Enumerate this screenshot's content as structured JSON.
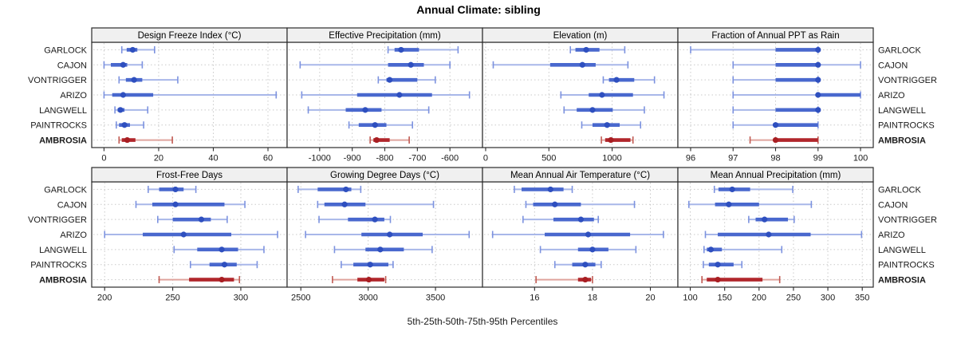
{
  "title": "Annual Climate: sibling",
  "axis_label": "5th-25th-50th-75th-95th Percentiles",
  "percentile_labels": [
    "5th",
    "25th",
    "50th",
    "75th",
    "95th"
  ],
  "sites": [
    "GARLOCK",
    "CAJON",
    "VONTRIGGER",
    "ARIZO",
    "LANGWELL",
    "PAINTROCKS",
    "AMBROSIA"
  ],
  "highlight_site": "AMBROSIA",
  "colors": {
    "normal": {
      "dot": "#2E4FBF",
      "box": "#4968CE",
      "whisker": "#A8B7E9",
      "cap": "#7C92DF"
    },
    "highlight": {
      "dot": "#A81E22",
      "box": "#B1262B",
      "whisker": "#DFA49D",
      "cap": "#C05A52"
    },
    "grid": "#C9C9C9",
    "frame": "#2B2B2B",
    "strip_bg": "#F0F0F0",
    "strip_text": "#000000",
    "tick_text": "#1A1A1A",
    "site_text": "#1A1A1A"
  },
  "chart_data": {
    "type": "dotplot-percentile-ranges",
    "layout": {
      "rows": 2,
      "cols": 4
    },
    "legend_position": "none",
    "grid": "dotted",
    "panels": [
      {
        "title": "Design Freeze Index (°C)",
        "grid_pos": [
          0,
          0
        ],
        "range": [
          -4.5,
          67
        ],
        "ticks": [
          0,
          20,
          40,
          60
        ],
        "values": [
          [
            6.5,
            8.3,
            10.5,
            12.2,
            18.5
          ],
          [
            0,
            2.5,
            7,
            8.5,
            14
          ],
          [
            5.5,
            8,
            11,
            14,
            27
          ],
          [
            0,
            3,
            7,
            18,
            63
          ],
          [
            4,
            5,
            6,
            7.5,
            16
          ],
          [
            4.5,
            5.5,
            7.5,
            9.5,
            14.5
          ],
          [
            5.5,
            6.5,
            8.5,
            11.5,
            25
          ]
        ]
      },
      {
        "title": "Effective Precipitation (mm)",
        "grid_pos": [
          0,
          1
        ],
        "range": [
          -1100,
          -500
        ],
        "ticks": [
          -1000,
          -900,
          -800,
          -700,
          -600
        ],
        "values": [
          [
            -790,
            -770,
            -750,
            -695,
            -575
          ],
          [
            -1060,
            -790,
            -720,
            -680,
            -600
          ],
          [
            -820,
            -795,
            -785,
            -700,
            -645
          ],
          [
            -1055,
            -885,
            -755,
            -655,
            -540
          ],
          [
            -1035,
            -920,
            -860,
            -810,
            -665
          ],
          [
            -910,
            -880,
            -830,
            -795,
            -715
          ],
          [
            -845,
            -835,
            -825,
            -785,
            -725
          ]
        ]
      },
      {
        "title": "Elevation (m)",
        "grid_pos": [
          0,
          2
        ],
        "range": [
          -25,
          1520
        ],
        "ticks": [
          0,
          500,
          1000
        ],
        "values": [
          [
            670,
            710,
            795,
            900,
            1100
          ],
          [
            60,
            510,
            765,
            870,
            1125
          ],
          [
            930,
            975,
            1035,
            1175,
            1335
          ],
          [
            595,
            815,
            920,
            1165,
            1410
          ],
          [
            620,
            720,
            845,
            1005,
            1255
          ],
          [
            760,
            845,
            960,
            1060,
            1225
          ],
          [
            915,
            945,
            990,
            1145,
            1165
          ]
        ]
      },
      {
        "title": "Fraction of Annual PPT as Rain",
        "grid_pos": [
          0,
          3
        ],
        "range": [
          95.7,
          100.3
        ],
        "ticks": [
          96,
          97,
          98,
          99,
          100
        ],
        "values": [
          [
            96,
            98,
            99,
            99,
            99
          ],
          [
            97,
            98,
            99,
            99,
            100
          ],
          [
            97,
            98,
            99,
            99,
            99
          ],
          [
            97,
            99,
            99,
            100,
            100
          ],
          [
            97,
            98,
            99,
            99,
            99
          ],
          [
            97,
            98,
            98,
            99,
            99
          ],
          [
            97.4,
            98,
            98,
            99,
            99
          ]
        ]
      },
      {
        "title": "Frost-Free Days",
        "grid_pos": [
          1,
          0
        ],
        "range": [
          190.5,
          334
        ],
        "ticks": [
          200,
          250,
          300
        ],
        "values": [
          [
            232,
            240,
            252,
            258,
            267
          ],
          [
            223,
            235,
            252,
            288,
            303
          ],
          [
            239,
            250,
            271,
            278,
            290
          ],
          [
            200,
            228,
            258,
            293,
            327
          ],
          [
            251,
            268,
            286,
            298,
            317
          ],
          [
            263,
            277,
            288,
            297,
            312
          ],
          [
            240,
            262,
            286,
            295,
            299
          ]
        ]
      },
      {
        "title": "Growing Degree Days (°C)",
        "grid_pos": [
          1,
          1
        ],
        "range": [
          2398,
          3849
        ],
        "ticks": [
          2500,
          3000,
          3500
        ],
        "values": [
          [
            2480,
            2625,
            2835,
            2875,
            2945
          ],
          [
            2625,
            2675,
            2825,
            2980,
            3485
          ],
          [
            2635,
            2850,
            3050,
            3120,
            3165
          ],
          [
            2535,
            2950,
            3160,
            3405,
            3750
          ],
          [
            2750,
            2980,
            3090,
            3265,
            3475
          ],
          [
            2800,
            2890,
            3015,
            3150,
            3185
          ],
          [
            2735,
            2920,
            3005,
            3120,
            3130
          ]
        ]
      },
      {
        "title": "Mean Annual Air Temperature (°C)",
        "grid_pos": [
          1,
          2
        ],
        "range": [
          14.2,
          20.95
        ],
        "ticks": [
          16,
          18,
          20
        ],
        "values": [
          [
            15.3,
            15.55,
            16.55,
            17.0,
            17.3
          ],
          [
            15.7,
            15.95,
            16.7,
            17.6,
            19.45
          ],
          [
            15.6,
            16.65,
            17.6,
            18.05,
            18.2
          ],
          [
            14.55,
            16.35,
            17.85,
            19.3,
            20.45
          ],
          [
            16.2,
            17.5,
            18.0,
            18.55,
            19.5
          ],
          [
            16.7,
            17.3,
            17.75,
            18.1,
            18.3
          ],
          [
            16.05,
            17.5,
            17.75,
            17.95,
            18.0
          ]
        ]
      },
      {
        "title": "Mean Annual Precipitation (mm)",
        "grid_pos": [
          1,
          3
        ],
        "range": [
          82,
          366
        ],
        "ticks": [
          100,
          150,
          200,
          250,
          300,
          350
        ],
        "values": [
          [
            135,
            141,
            161,
            187,
            249
          ],
          [
            98,
            136,
            156,
            200,
            276
          ],
          [
            185,
            195,
            208,
            242,
            251
          ],
          [
            122,
            140,
            214,
            275,
            349
          ],
          [
            120,
            124,
            130,
            146,
            233
          ],
          [
            119,
            127,
            140,
            163,
            175
          ],
          [
            117,
            124,
            140,
            205,
            230
          ]
        ]
      }
    ]
  }
}
